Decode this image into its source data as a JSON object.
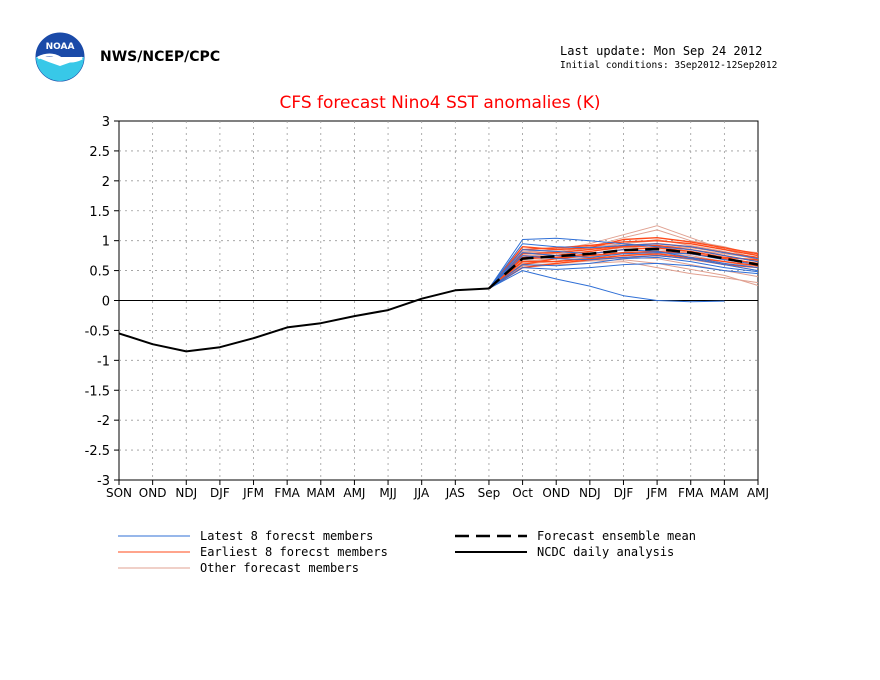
{
  "header": {
    "agency": "NWS/NCEP/CPC",
    "logo_text": "NOAA",
    "last_update": "Last update: Mon Sep 24 2012",
    "initial_conditions": "Initial conditions: 3Sep2012-12Sep2012"
  },
  "colors": {
    "title": "#ff0000",
    "latest_members": "#2f6fd6",
    "earliest_members": "#ff4a1a",
    "other_members": "#e0a090",
    "mean": "#000000",
    "analysis": "#000000",
    "grid": "#9a9a9a",
    "logo_blue": "#1a4aa8",
    "logo_cyan": "#38c8e8"
  },
  "legend": {
    "latest": "Latest 8 forecst members",
    "earliest": "Earliest 8 forecst members",
    "other": "Other forecast members",
    "mean": "Forecast ensemble mean",
    "analysis": "NCDC daily analysis"
  },
  "chart_data": {
    "type": "line",
    "title": "CFS forecast Nino4 SST anomalies (K)",
    "xlabel": "",
    "ylabel": "",
    "ylim": [
      -3,
      3
    ],
    "yticks": [
      "3",
      "2.5",
      "2",
      "1.5",
      "1",
      "0.5",
      "0",
      "-0.5",
      "-1",
      "-1.5",
      "-2",
      "-2.5",
      "-3"
    ],
    "ytick_values": [
      3,
      2.5,
      2,
      1.5,
      1,
      0.5,
      0,
      -0.5,
      -1,
      -1.5,
      -2,
      -2.5,
      -3
    ],
    "categories": [
      "SON",
      "OND",
      "NDJ",
      "DJF",
      "JFM",
      "FMA",
      "MAM",
      "AMJ",
      "MJJ",
      "JJA",
      "JAS",
      "Sep",
      "Oct",
      "OND",
      "NDJ",
      "DJF",
      "JFM",
      "FMA",
      "MAM",
      "AMJ"
    ],
    "grid": true,
    "legend_position": "bottom",
    "series": [
      {
        "name": "NCDC daily analysis",
        "kind": "analysis",
        "values": [
          -0.55,
          -0.73,
          -0.85,
          -0.78,
          -0.63,
          -0.45,
          -0.38,
          -0.26,
          -0.16,
          0.03,
          0.17,
          0.2,
          null,
          null,
          null,
          null,
          null,
          null,
          null,
          null
        ]
      },
      {
        "name": "Forecast ensemble mean",
        "kind": "mean",
        "values": [
          null,
          null,
          null,
          null,
          null,
          null,
          null,
          null,
          null,
          null,
          null,
          0.2,
          0.7,
          0.74,
          0.78,
          0.84,
          0.86,
          0.8,
          0.7,
          0.6
        ]
      },
      {
        "kind": "latest",
        "values": [
          null,
          null,
          null,
          null,
          null,
          null,
          null,
          null,
          null,
          null,
          null,
          0.2,
          1.02,
          1.04,
          1.0,
          0.95,
          0.9,
          0.85,
          0.75,
          0.65
        ]
      },
      {
        "kind": "latest",
        "values": [
          null,
          null,
          null,
          null,
          null,
          null,
          null,
          null,
          null,
          null,
          null,
          0.2,
          0.5,
          0.36,
          0.24,
          0.08,
          0.0,
          -0.02,
          -0.01,
          null
        ]
      },
      {
        "kind": "latest",
        "values": [
          null,
          null,
          null,
          null,
          null,
          null,
          null,
          null,
          null,
          null,
          null,
          0.2,
          0.85,
          0.82,
          0.78,
          0.85,
          0.82,
          0.72,
          0.62,
          0.55
        ]
      },
      {
        "kind": "latest",
        "values": [
          null,
          null,
          null,
          null,
          null,
          null,
          null,
          null,
          null,
          null,
          null,
          0.2,
          0.6,
          0.58,
          0.62,
          0.7,
          0.72,
          0.65,
          0.55,
          0.48
        ]
      },
      {
        "kind": "latest",
        "values": [
          null,
          null,
          null,
          null,
          null,
          null,
          null,
          null,
          null,
          null,
          null,
          0.2,
          0.75,
          0.7,
          0.68,
          0.72,
          0.75,
          0.7,
          0.6,
          0.5
        ]
      },
      {
        "kind": "latest",
        "values": [
          null,
          null,
          null,
          null,
          null,
          null,
          null,
          null,
          null,
          null,
          null,
          0.2,
          0.95,
          0.9,
          0.88,
          0.92,
          0.95,
          0.9,
          0.8,
          0.7
        ]
      },
      {
        "kind": "latest",
        "values": [
          null,
          null,
          null,
          null,
          null,
          null,
          null,
          null,
          null,
          null,
          null,
          0.2,
          0.55,
          0.52,
          0.55,
          0.6,
          0.62,
          0.58,
          0.5,
          0.45
        ]
      },
      {
        "kind": "latest",
        "values": [
          null,
          null,
          null,
          null,
          null,
          null,
          null,
          null,
          null,
          null,
          null,
          0.2,
          0.8,
          0.75,
          0.72,
          0.78,
          0.8,
          0.78,
          0.68,
          0.6
        ]
      },
      {
        "kind": "earliest",
        "values": [
          null,
          null,
          null,
          null,
          null,
          null,
          null,
          null,
          null,
          null,
          null,
          0.2,
          0.72,
          0.75,
          0.82,
          0.9,
          0.92,
          0.85,
          0.75,
          0.65
        ]
      },
      {
        "kind": "earliest",
        "values": [
          null,
          null,
          null,
          null,
          null,
          null,
          null,
          null,
          null,
          null,
          null,
          0.2,
          0.6,
          0.7,
          0.75,
          0.8,
          0.82,
          0.78,
          0.7,
          0.62
        ]
      },
      {
        "kind": "earliest",
        "values": [
          null,
          null,
          null,
          null,
          null,
          null,
          null,
          null,
          null,
          null,
          null,
          0.2,
          0.85,
          0.88,
          0.92,
          0.98,
          1.0,
          0.95,
          0.85,
          0.75
        ]
      },
      {
        "kind": "earliest",
        "values": [
          null,
          null,
          null,
          null,
          null,
          null,
          null,
          null,
          null,
          null,
          null,
          0.2,
          0.65,
          0.65,
          0.7,
          0.75,
          0.78,
          0.72,
          0.65,
          0.58
        ]
      },
      {
        "kind": "earliest",
        "values": [
          null,
          null,
          null,
          null,
          null,
          null,
          null,
          null,
          null,
          null,
          null,
          0.2,
          0.78,
          0.8,
          0.85,
          0.92,
          0.95,
          0.9,
          0.8,
          0.72
        ]
      },
      {
        "kind": "earliest",
        "values": [
          null,
          null,
          null,
          null,
          null,
          null,
          null,
          null,
          null,
          null,
          null,
          0.2,
          0.55,
          0.62,
          0.68,
          0.72,
          0.75,
          0.7,
          0.6,
          0.55
        ]
      },
      {
        "kind": "earliest",
        "values": [
          null,
          null,
          null,
          null,
          null,
          null,
          null,
          null,
          null,
          null,
          null,
          0.2,
          0.9,
          0.85,
          0.88,
          1.02,
          1.05,
          0.98,
          0.88,
          0.78
        ]
      },
      {
        "kind": "earliest",
        "values": [
          null,
          null,
          null,
          null,
          null,
          null,
          null,
          null,
          null,
          null,
          null,
          0.2,
          0.7,
          0.72,
          0.78,
          0.85,
          0.88,
          0.82,
          0.72,
          0.68
        ]
      },
      {
        "kind": "other",
        "values": [
          null,
          null,
          null,
          null,
          null,
          null,
          null,
          null,
          null,
          null,
          null,
          0.2,
          0.8,
          0.85,
          0.95,
          1.1,
          1.25,
          1.05,
          0.85,
          0.7
        ]
      },
      {
        "kind": "other",
        "values": [
          null,
          null,
          null,
          null,
          null,
          null,
          null,
          null,
          null,
          null,
          null,
          0.2,
          0.55,
          0.6,
          0.62,
          0.65,
          0.55,
          0.45,
          0.38,
          0.3
        ]
      },
      {
        "kind": "other",
        "values": [
          null,
          null,
          null,
          null,
          null,
          null,
          null,
          null,
          null,
          null,
          null,
          0.2,
          0.68,
          0.75,
          0.9,
          1.05,
          1.18,
          1.0,
          0.9,
          0.75
        ]
      },
      {
        "kind": "other",
        "values": [
          null,
          null,
          null,
          null,
          null,
          null,
          null,
          null,
          null,
          null,
          null,
          0.2,
          0.62,
          0.65,
          0.7,
          0.72,
          0.7,
          0.6,
          0.5,
          0.4
        ]
      },
      {
        "kind": "other",
        "values": [
          null,
          null,
          null,
          null,
          null,
          null,
          null,
          null,
          null,
          null,
          null,
          0.2,
          0.75,
          0.78,
          0.82,
          0.88,
          0.92,
          0.88,
          0.8,
          0.72
        ]
      },
      {
        "kind": "other",
        "values": [
          null,
          null,
          null,
          null,
          null,
          null,
          null,
          null,
          null,
          null,
          null,
          0.2,
          0.58,
          0.62,
          0.66,
          0.68,
          0.62,
          0.52,
          0.42,
          0.25
        ]
      },
      {
        "kind": "other",
        "values": [
          null,
          null,
          null,
          null,
          null,
          null,
          null,
          null,
          null,
          null,
          null,
          0.2,
          0.82,
          0.85,
          0.9,
          0.95,
          1.0,
          0.95,
          0.85,
          0.8
        ]
      },
      {
        "kind": "other",
        "values": [
          null,
          null,
          null,
          null,
          null,
          null,
          null,
          null,
          null,
          null,
          null,
          0.2,
          0.66,
          0.7,
          0.74,
          0.78,
          0.8,
          0.75,
          0.65,
          0.55
        ]
      },
      {
        "kind": "other",
        "values": [
          null,
          null,
          null,
          null,
          null,
          null,
          null,
          null,
          null,
          null,
          null,
          0.2,
          0.72,
          0.8,
          0.86,
          0.95,
          1.02,
          0.92,
          0.82,
          0.68
        ]
      },
      {
        "kind": "other",
        "values": [
          null,
          null,
          null,
          null,
          null,
          null,
          null,
          null,
          null,
          null,
          null,
          0.2,
          0.6,
          0.66,
          0.72,
          0.78,
          0.76,
          0.68,
          0.6,
          0.5
        ]
      },
      {
        "kind": "other",
        "values": [
          null,
          null,
          null,
          null,
          null,
          null,
          null,
          null,
          null,
          null,
          null,
          0.2,
          0.78,
          0.82,
          0.88,
          0.9,
          0.85,
          0.8,
          0.7,
          0.62
        ]
      },
      {
        "kind": "other",
        "values": [
          null,
          null,
          null,
          null,
          null,
          null,
          null,
          null,
          null,
          null,
          null,
          0.2,
          0.64,
          0.7,
          0.78,
          0.85,
          0.9,
          0.85,
          0.78,
          0.7
        ]
      }
    ]
  }
}
